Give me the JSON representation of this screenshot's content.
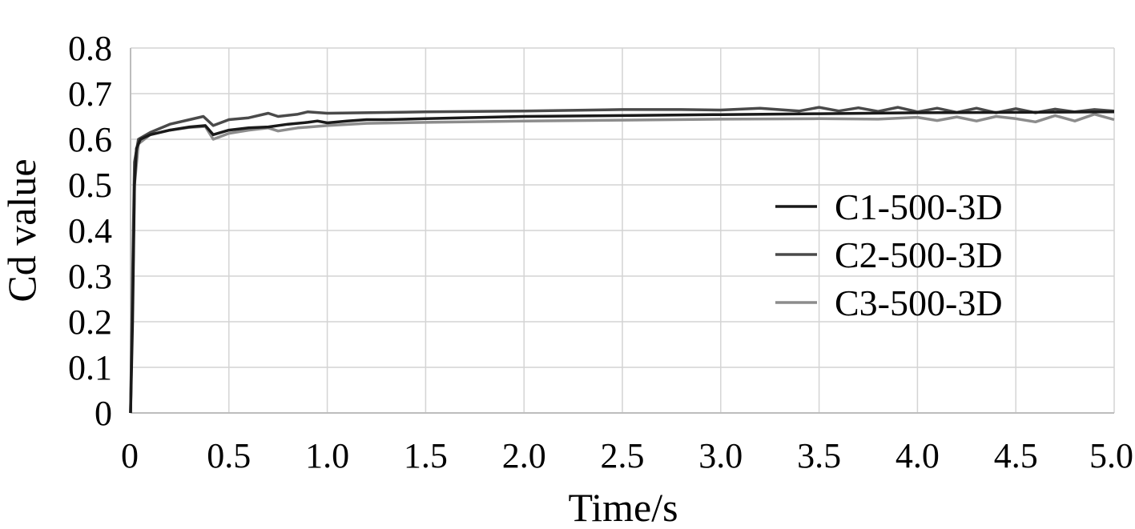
{
  "chart_data": {
    "type": "line",
    "title": "",
    "xlabel": "Time/s",
    "ylabel": "Cd value",
    "xlim": [
      0,
      5.0
    ],
    "ylim": [
      0,
      0.8
    ],
    "x_ticks": [
      "0",
      "0.5",
      "1.0",
      "1.5",
      "2.0",
      "2.5",
      "3.0",
      "3.5",
      "4.0",
      "4.5",
      "5.0"
    ],
    "y_ticks": [
      "0",
      "0.1",
      "0.2",
      "0.3",
      "0.4",
      "0.5",
      "0.6",
      "0.7",
      "0.8"
    ],
    "grid": true,
    "legend_position": "right",
    "series": [
      {
        "name": "C1-500-3D",
        "color": "#1a1a1a",
        "points": [
          [
            0,
            0
          ],
          [
            0.01,
            0.2
          ],
          [
            0.02,
            0.5
          ],
          [
            0.03,
            0.58
          ],
          [
            0.05,
            0.6
          ],
          [
            0.1,
            0.61
          ],
          [
            0.2,
            0.62
          ],
          [
            0.3,
            0.627
          ],
          [
            0.38,
            0.63
          ],
          [
            0.42,
            0.61
          ],
          [
            0.5,
            0.62
          ],
          [
            0.6,
            0.625
          ],
          [
            0.7,
            0.627
          ],
          [
            0.8,
            0.633
          ],
          [
            0.9,
            0.637
          ],
          [
            0.95,
            0.64
          ],
          [
            1.0,
            0.636
          ],
          [
            1.1,
            0.64
          ],
          [
            1.2,
            0.643
          ],
          [
            1.3,
            0.643
          ],
          [
            1.5,
            0.645
          ],
          [
            2.0,
            0.65
          ],
          [
            2.5,
            0.652
          ],
          [
            3.0,
            0.654
          ],
          [
            3.5,
            0.656
          ],
          [
            4.0,
            0.658
          ],
          [
            4.5,
            0.659
          ],
          [
            5.0,
            0.66
          ]
        ]
      },
      {
        "name": "C2-500-3D",
        "color": "#4a4a4a",
        "points": [
          [
            0,
            0
          ],
          [
            0.01,
            0.3
          ],
          [
            0.02,
            0.55
          ],
          [
            0.04,
            0.6
          ],
          [
            0.1,
            0.615
          ],
          [
            0.2,
            0.633
          ],
          [
            0.3,
            0.643
          ],
          [
            0.37,
            0.65
          ],
          [
            0.42,
            0.63
          ],
          [
            0.5,
            0.643
          ],
          [
            0.6,
            0.647
          ],
          [
            0.7,
            0.657
          ],
          [
            0.75,
            0.65
          ],
          [
            0.85,
            0.655
          ],
          [
            0.9,
            0.66
          ],
          [
            1.0,
            0.657
          ],
          [
            1.5,
            0.66
          ],
          [
            2.0,
            0.662
          ],
          [
            2.5,
            0.665
          ],
          [
            2.8,
            0.665
          ],
          [
            3.0,
            0.664
          ],
          [
            3.2,
            0.668
          ],
          [
            3.4,
            0.662
          ],
          [
            3.5,
            0.67
          ],
          [
            3.6,
            0.662
          ],
          [
            3.7,
            0.669
          ],
          [
            3.8,
            0.661
          ],
          [
            3.9,
            0.67
          ],
          [
            4.0,
            0.66
          ],
          [
            4.1,
            0.668
          ],
          [
            4.2,
            0.659
          ],
          [
            4.3,
            0.668
          ],
          [
            4.4,
            0.658
          ],
          [
            4.5,
            0.667
          ],
          [
            4.6,
            0.658
          ],
          [
            4.7,
            0.666
          ],
          [
            4.8,
            0.66
          ],
          [
            4.9,
            0.665
          ],
          [
            5.0,
            0.662
          ]
        ]
      },
      {
        "name": "C3-500-3D",
        "color": "#8c8c8c",
        "points": [
          [
            0,
            0
          ],
          [
            0.01,
            0.25
          ],
          [
            0.02,
            0.5
          ],
          [
            0.04,
            0.59
          ],
          [
            0.1,
            0.61
          ],
          [
            0.2,
            0.62
          ],
          [
            0.3,
            0.626
          ],
          [
            0.38,
            0.628
          ],
          [
            0.42,
            0.6
          ],
          [
            0.45,
            0.605
          ],
          [
            0.5,
            0.613
          ],
          [
            0.6,
            0.62
          ],
          [
            0.7,
            0.625
          ],
          [
            0.75,
            0.618
          ],
          [
            0.85,
            0.625
          ],
          [
            1.0,
            0.63
          ],
          [
            1.2,
            0.635
          ],
          [
            1.5,
            0.637
          ],
          [
            2.0,
            0.64
          ],
          [
            2.5,
            0.642
          ],
          [
            3.0,
            0.644
          ],
          [
            3.5,
            0.645
          ],
          [
            3.8,
            0.644
          ],
          [
            4.0,
            0.648
          ],
          [
            4.1,
            0.641
          ],
          [
            4.2,
            0.649
          ],
          [
            4.3,
            0.64
          ],
          [
            4.4,
            0.65
          ],
          [
            4.5,
            0.645
          ],
          [
            4.6,
            0.638
          ],
          [
            4.7,
            0.652
          ],
          [
            4.8,
            0.64
          ],
          [
            4.9,
            0.655
          ],
          [
            5.0,
            0.643
          ]
        ]
      }
    ]
  }
}
